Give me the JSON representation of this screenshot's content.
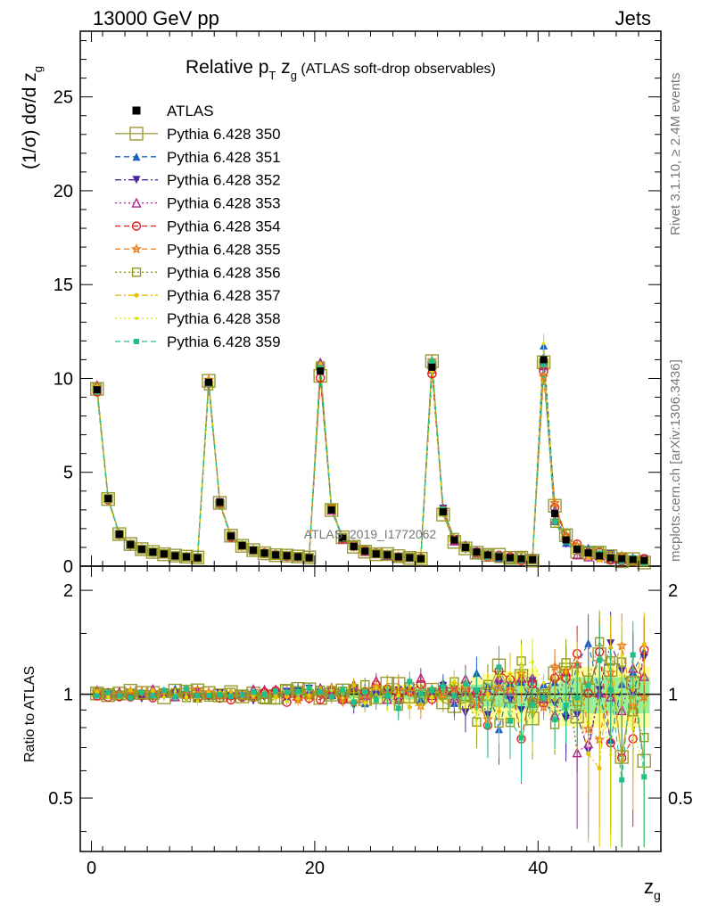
{
  "header": {
    "left": "13000 GeV pp",
    "right": "Jets"
  },
  "side_labels": {
    "rivet": "Rivet 3.1.10, ≥ 2.4M events",
    "mcplots": "mcplots.cern.ch [arXiv:1306.3436]"
  },
  "watermark": "ATLAS_2019_I1772062",
  "chart_data": {
    "type": "line",
    "title_main": "Relative p",
    "title_sub_t": "T",
    "title_z": " z",
    "title_sub_g": "g",
    "title_rest": " (ATLAS soft-drop observables)",
    "ylabel_main": "(1/σ) dσ/d z",
    "ylabel_sub": "g",
    "ratio_ylabel": "Ratio to ATLAS",
    "xlabel_main": "z",
    "xlabel_sub": "g",
    "xlim": [
      -1,
      51
    ],
    "ylim": [
      0,
      28.5
    ],
    "ratio_ylim": [
      0.35,
      2.35
    ],
    "x_ticks": [
      0,
      20,
      40
    ],
    "y_ticks": [
      0,
      5,
      10,
      15,
      20,
      25
    ],
    "ratio_ticks": [
      0.5,
      1,
      2
    ],
    "x": [
      0.5,
      1.5,
      2.5,
      3.5,
      4.5,
      5.5,
      6.5,
      7.5,
      8.5,
      9.5,
      10.5,
      11.5,
      12.5,
      13.5,
      14.5,
      15.5,
      16.5,
      17.5,
      18.5,
      19.5,
      20.5,
      21.5,
      22.5,
      23.5,
      24.5,
      25.5,
      26.5,
      27.5,
      28.5,
      29.5,
      30.5,
      31.5,
      32.5,
      33.5,
      34.5,
      35.5,
      36.5,
      37.5,
      38.5,
      39.5,
      40.5,
      41.5,
      42.5,
      43.5,
      44.5,
      45.5,
      46.5,
      47.5,
      48.5,
      49.5
    ],
    "atlas": [
      9.4,
      3.6,
      1.7,
      1.15,
      0.9,
      0.75,
      0.65,
      0.55,
      0.5,
      0.45,
      9.8,
      3.4,
      1.6,
      1.1,
      0.85,
      0.7,
      0.6,
      0.55,
      0.5,
      0.45,
      10.4,
      3.0,
      1.5,
      1.05,
      0.8,
      0.65,
      0.6,
      0.5,
      0.45,
      0.4,
      10.6,
      2.9,
      1.4,
      1.0,
      0.75,
      0.6,
      0.5,
      0.45,
      0.4,
      0.35,
      11.0,
      2.8,
      1.4,
      0.9,
      0.7,
      0.55,
      0.45,
      0.4,
      0.35,
      0.3
    ],
    "series": [
      {
        "name": "ATLAS",
        "color": "#000000",
        "marker": "square-filled",
        "dash": "none"
      },
      {
        "name": "Pythia 6.428 350",
        "color": "#999933",
        "marker": "square-open-large",
        "dash": "solid"
      },
      {
        "name": "Pythia 6.428 351",
        "color": "#1f5fbf",
        "marker": "triangle-up-filled",
        "dash": "dashed"
      },
      {
        "name": "Pythia 6.428 352",
        "color": "#4b27a8",
        "marker": "triangle-down-filled",
        "dash": "dashdot"
      },
      {
        "name": "Pythia 6.428 353",
        "color": "#b0248f",
        "marker": "triangle-up-open",
        "dash": "dotted"
      },
      {
        "name": "Pythia 6.428 354",
        "color": "#e01e1e",
        "marker": "circle-open",
        "dash": "dashed"
      },
      {
        "name": "Pythia 6.428 355",
        "color": "#f07a18",
        "marker": "star-open",
        "dash": "dashed"
      },
      {
        "name": "Pythia 6.428 356",
        "color": "#8f9a1c",
        "marker": "square-open",
        "dash": "dotted"
      },
      {
        "name": "Pythia 6.428 357",
        "color": "#e6be00",
        "marker": "dot",
        "dash": "dashdot"
      },
      {
        "name": "Pythia 6.428 358",
        "color": "#d6e600",
        "marker": "dot-small",
        "dash": "dotted"
      },
      {
        "name": "Pythia 6.428 359",
        "color": "#20c08a",
        "marker": "square-filled-small",
        "dash": "dashed"
      }
    ],
    "ratios": {
      "mult": [
        1.0,
        1.02,
        0.98,
        1.03,
        0.97,
        1.01,
        0.99,
        1.02,
        0.98,
        1.0
      ],
      "spread": [
        0.02,
        0.02,
        0.02,
        0.03,
        0.03,
        0.03,
        0.04,
        0.04,
        0.05,
        0.05,
        0.02,
        0.03,
        0.03,
        0.03,
        0.04,
        0.04,
        0.05,
        0.05,
        0.06,
        0.06,
        0.04,
        0.06,
        0.07,
        0.08,
        0.09,
        0.1,
        0.11,
        0.12,
        0.12,
        0.13,
        0.06,
        0.1,
        0.14,
        0.18,
        0.22,
        0.26,
        0.28,
        0.3,
        0.32,
        0.34,
        0.12,
        0.25,
        0.35,
        0.45,
        0.5,
        0.55,
        0.55,
        0.55,
        0.55,
        0.55
      ]
    }
  }
}
